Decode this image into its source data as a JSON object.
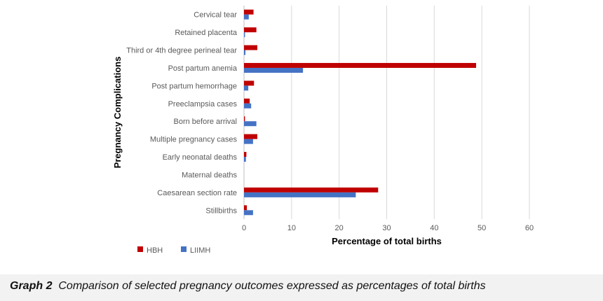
{
  "caption": {
    "label": "Graph 2",
    "text": "Comparison of selected pregnancy outcomes expressed as percentages of total births"
  },
  "chart_data": {
    "type": "bar",
    "orientation": "horizontal",
    "title": "",
    "xlabel": "Percentage of total births",
    "ylabel": "Pregnancy Complications",
    "xlim": [
      0,
      60
    ],
    "xticks": [
      0,
      10,
      20,
      30,
      40,
      50,
      60
    ],
    "grid": true,
    "legend_position": "bottom-left",
    "categories": [
      "Cervical tear",
      "Retained placenta",
      "Third or 4th degree perineal tear",
      "Post partum anemia",
      "Post partum hemorrhage",
      "Preeclampsia cases",
      "Born before arrival",
      "Multiple pregnancy cases",
      "Early neonatal deaths",
      "Maternal deaths",
      "Caesarean section rate",
      "Stillbirths"
    ],
    "series": [
      {
        "name": "HBH",
        "color": "#c00000",
        "values": [
          2.0,
          2.6,
          2.8,
          48.8,
          2.1,
          1.2,
          0.2,
          2.8,
          0.5,
          0.0,
          28.2,
          0.6
        ]
      },
      {
        "name": "LIIMH",
        "color": "#4472c4",
        "values": [
          1.0,
          0.2,
          0.3,
          12.4,
          0.9,
          1.5,
          2.6,
          1.9,
          0.4,
          0.0,
          23.5,
          1.9
        ]
      }
    ]
  }
}
